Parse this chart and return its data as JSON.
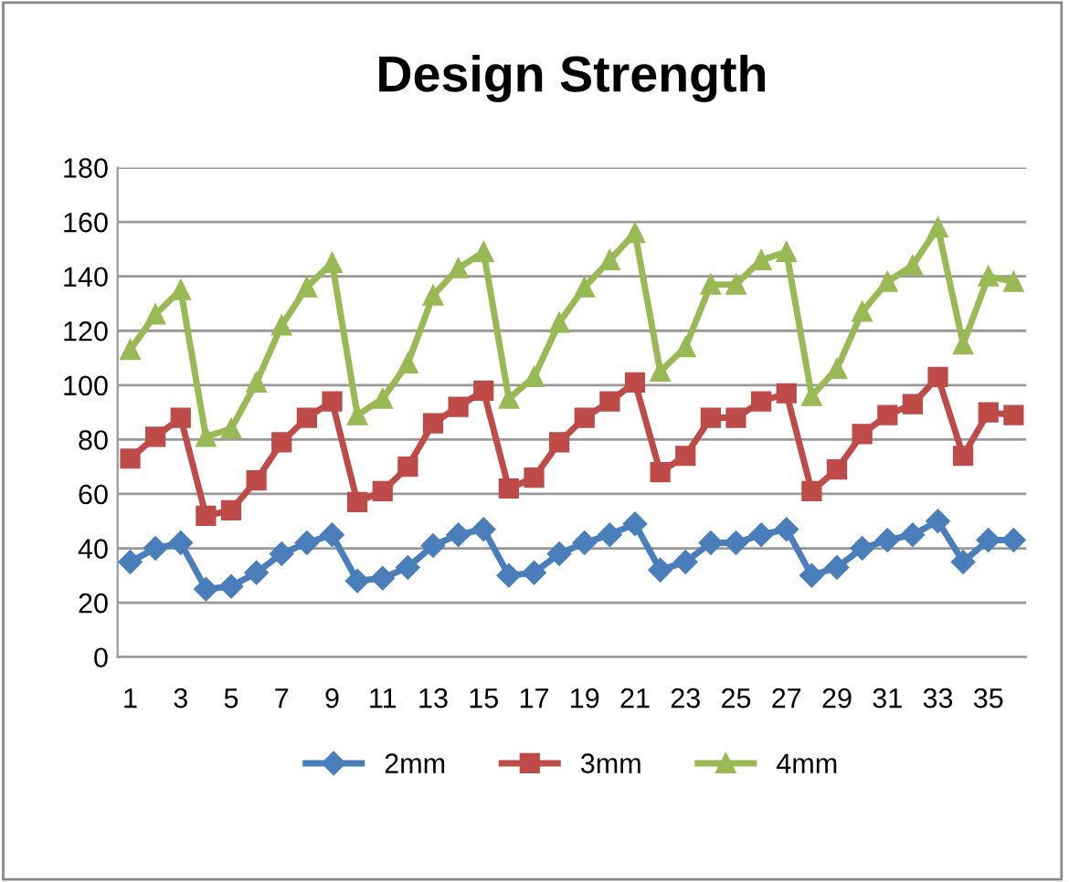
{
  "chart_data": {
    "type": "line",
    "title": "Design Strength",
    "categories": [
      "1",
      null,
      "3",
      null,
      "5",
      null,
      "7",
      null,
      "9",
      null,
      "11",
      null,
      "13",
      null,
      "15",
      null,
      "17",
      null,
      "19",
      null,
      "21",
      null,
      "23",
      null,
      "25",
      null,
      "27",
      null,
      "29",
      null,
      "31",
      null,
      "33",
      null,
      "35",
      null
    ],
    "series": [
      {
        "name": "2mm",
        "color": "#4a7ebb",
        "marker": "diamond",
        "values": [
          35,
          40,
          42,
          25,
          26,
          31,
          38,
          42,
          45,
          28,
          29,
          33,
          41,
          45,
          47,
          30,
          31,
          38,
          42,
          45,
          49,
          32,
          35,
          42,
          42,
          45,
          47,
          30,
          33,
          40,
          43,
          45,
          50,
          35,
          43,
          43
        ]
      },
      {
        "name": "3mm",
        "color": "#be4b48",
        "marker": "square",
        "values": [
          73,
          81,
          88,
          52,
          54,
          65,
          79,
          88,
          94,
          57,
          61,
          70,
          86,
          92,
          98,
          62,
          66,
          79,
          88,
          94,
          101,
          68,
          74,
          88,
          88,
          94,
          97,
          61,
          69,
          82,
          89,
          93,
          103,
          74,
          90,
          89
        ]
      },
      {
        "name": "4mm",
        "color": "#98b954",
        "marker": "triangle",
        "values": [
          113,
          126,
          135,
          81,
          84,
          101,
          122,
          136,
          145,
          89,
          95,
          108,
          133,
          143,
          149,
          95,
          103,
          123,
          136,
          146,
          156,
          105,
          114,
          137,
          137,
          146,
          149,
          96,
          106,
          127,
          138,
          144,
          158,
          115,
          140,
          138
        ]
      }
    ],
    "ylim": [
      0,
      180
    ],
    "yticks": [
      0,
      20,
      40,
      60,
      80,
      100,
      120,
      140,
      160,
      180
    ],
    "grid": "y",
    "legend": "bottom",
    "line_style": "solid"
  }
}
